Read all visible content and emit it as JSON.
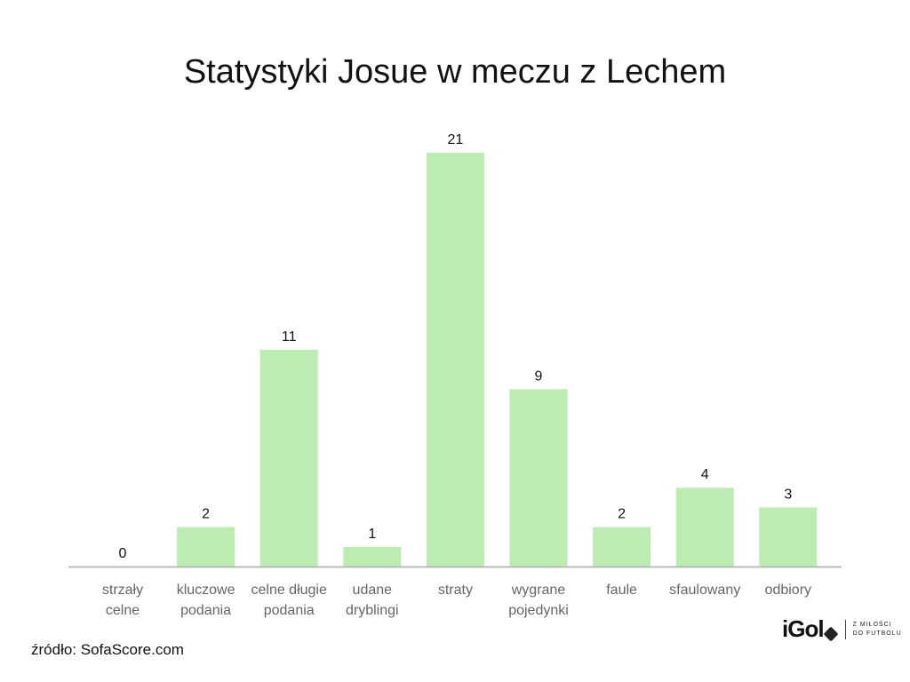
{
  "chart_data": {
    "type": "bar",
    "title": "Statystyki Josue w meczu z Lechem",
    "categories": [
      [
        "strzały",
        "celne"
      ],
      [
        "kluczowe",
        "podania"
      ],
      [
        "celne długie",
        "podania"
      ],
      [
        "udane",
        "dryblingi"
      ],
      [
        "straty"
      ],
      [
        "wygrane",
        "pojedynki"
      ],
      [
        "faule"
      ],
      [
        "sfaulowany"
      ],
      [
        "odbiory"
      ]
    ],
    "values": [
      0,
      2,
      11,
      1,
      21,
      9,
      2,
      4,
      3
    ],
    "xlabel": "",
    "ylabel": "",
    "ylim": [
      0,
      21
    ],
    "grid": false,
    "bar_color": "#bbedb0",
    "axis_color": "#bbbbbb"
  },
  "source": "źródło: SofaScore.com",
  "logo": {
    "brand": "iGol",
    "tagline1": "Z MIŁOŚCI",
    "tagline2": "DO FUTBOLU"
  }
}
